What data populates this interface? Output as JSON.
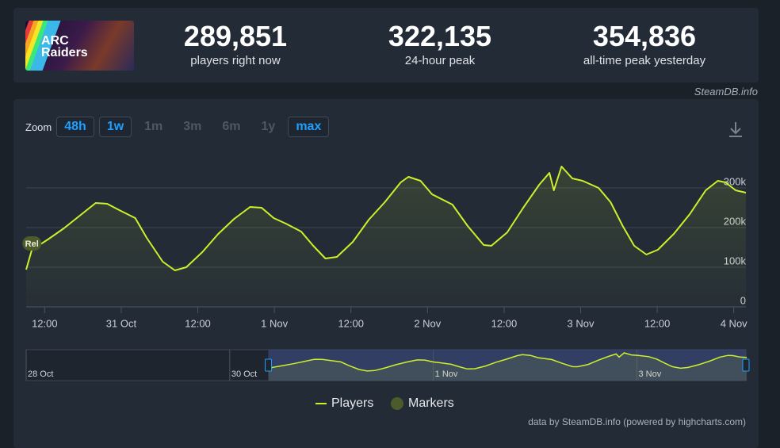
{
  "game": {
    "name": "ARC Raiders"
  },
  "stats": [
    {
      "value": "289,851",
      "label": "players right now"
    },
    {
      "value": "322,135",
      "label": "24-hour peak"
    },
    {
      "value": "354,836",
      "label": "all-time peak yesterday"
    }
  ],
  "source": "SteamDB.info",
  "zoom": {
    "label": "Zoom",
    "buttons": [
      {
        "text": "48h",
        "active": true
      },
      {
        "text": "1w",
        "active": true
      },
      {
        "text": "1m",
        "active": false
      },
      {
        "text": "3m",
        "active": false
      },
      {
        "text": "6m",
        "active": false
      },
      {
        "text": "1y",
        "active": false
      },
      {
        "text": "max",
        "active": true
      }
    ]
  },
  "chart_data": {
    "type": "line",
    "x": [
      9.1,
      10.0,
      12.5,
      15.0,
      17.5,
      20.0,
      21.8,
      23.7,
      26.2,
      28.0,
      30.5,
      32.4,
      34.2,
      36.7,
      39.2,
      41.7,
      44.2,
      46.0,
      47.9,
      49.8,
      52.2,
      54.1,
      56.0,
      57.8,
      60.3,
      62.8,
      65.3,
      67.8,
      69.0,
      70.9,
      72.7,
      75.9,
      78.3,
      80.8,
      82.0,
      84.5,
      87.0,
      89.5,
      91.1,
      91.8,
      93.0,
      94.7,
      96.3,
      98.8,
      100.7,
      102.6,
      104.4,
      106.3,
      108.1,
      110.6,
      113.1,
      115.6,
      117.5,
      118.7,
      120.3,
      121.9
    ],
    "series": [
      {
        "name": "Players",
        "color": "#cdf02a",
        "values": [
          94000,
          144000,
          170000,
          198000,
          230000,
          262000,
          260000,
          244000,
          224000,
          174000,
          114000,
          92000,
          100000,
          138000,
          184000,
          222000,
          252000,
          250000,
          224000,
          210000,
          190000,
          154000,
          122000,
          126000,
          164000,
          220000,
          264000,
          314000,
          328000,
          318000,
          284000,
          258000,
          204000,
          156000,
          154000,
          188000,
          250000,
          308000,
          338000,
          294000,
          354000,
          324000,
          318000,
          300000,
          264000,
          204000,
          154000,
          132000,
          144000,
          184000,
          234000,
          294000,
          318000,
          314000,
          294000,
          288000
        ]
      }
    ],
    "markers": {
      "name": "Markers",
      "color": "#4d5b2c",
      "items": [
        {
          "label": "Rel",
          "x": 10.0
        }
      ]
    },
    "xlim": [
      9.1,
      121.9
    ],
    "xticks": [
      {
        "value": 12,
        "label": "12:00"
      },
      {
        "value": 24,
        "label": "31 Oct"
      },
      {
        "value": 36,
        "label": "12:00"
      },
      {
        "value": 48,
        "label": "1 Nov"
      },
      {
        "value": 60,
        "label": "12:00"
      },
      {
        "value": 72,
        "label": "2 Nov"
      },
      {
        "value": 84,
        "label": "12:00"
      },
      {
        "value": 96,
        "label": "3 Nov"
      },
      {
        "value": 108,
        "label": "12:00"
      },
      {
        "value": 120,
        "label": "4 Nov"
      }
    ],
    "ylim": [
      0,
      400000
    ],
    "yticks": [
      0,
      {
        "value": 100000,
        "label": "100k"
      },
      {
        "value": 200000,
        "label": "200k"
      },
      {
        "value": 300000,
        "label": "300k"
      }
    ],
    "grid": true,
    "navigator": {
      "xlim": [
        -48,
        121.7
      ],
      "xticks": [
        {
          "value": -48,
          "label": "28 Oct"
        },
        {
          "value": 0,
          "label": "30 Oct"
        },
        {
          "value": 48,
          "label": "1 Nov"
        },
        {
          "value": 96,
          "label": "3 Nov"
        }
      ]
    },
    "credit": "data by SteamDB.info (powered by highcharts.com)"
  }
}
